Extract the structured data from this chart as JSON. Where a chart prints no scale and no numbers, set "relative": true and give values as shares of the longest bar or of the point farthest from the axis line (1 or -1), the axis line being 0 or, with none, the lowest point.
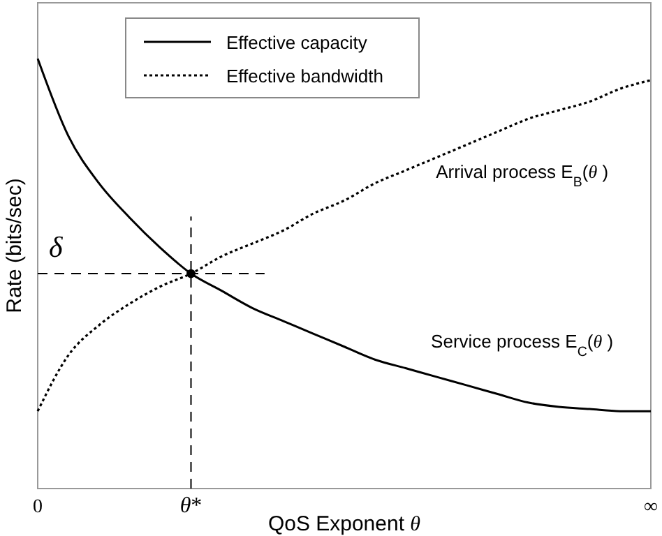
{
  "chart_data": {
    "type": "line",
    "relative": true,
    "xlabel": "QoS Exponent θ",
    "ylabel": "Rate (bits/sec)",
    "categories": [
      "0",
      null,
      null,
      null,
      null,
      "θ*",
      null,
      null,
      null,
      null,
      null,
      null,
      null,
      null,
      null,
      null,
      null,
      null,
      null,
      null,
      "∞"
    ],
    "legend": "top left",
    "series": [
      {
        "name": "Effective capacity",
        "color": "#000000",
        "line_style": "solid",
        "marker": "none",
        "values": [
          1,
          0.82,
          0.71,
          0.63,
          0.56,
          0.5,
          0.46,
          0.42,
          0.39,
          0.36,
          0.33,
          0.3,
          0.28,
          0.26,
          0.24,
          0.22,
          0.2,
          0.19,
          0.185,
          0.18,
          0.18
        ]
      },
      {
        "name": "Effective bandwidth",
        "color": "#000000",
        "line_style": "dotted",
        "marker": "none",
        "values": [
          0.18,
          0.31,
          0.38,
          0.43,
          0.47,
          0.5,
          0.54,
          0.57,
          0.6,
          0.64,
          0.67,
          0.71,
          0.74,
          0.77,
          0.8,
          0.83,
          0.86,
          0.88,
          0.9,
          0.93,
          0.95
        ]
      },
      {
        "type": "scatter",
        "color": "#000000",
        "marker": "circle",
        "values": [
          null,
          null,
          null,
          null,
          null,
          0.5,
          null,
          null,
          null,
          null,
          null,
          null,
          null,
          null,
          null,
          null,
          null,
          null,
          null,
          null,
          null
        ]
      }
    ],
    "ref_lines": [
      {
        "axis": "x",
        "value": "θ*",
        "line_style": "dashed",
        "color": "#000000"
      },
      {
        "axis": "y",
        "value": 0.5,
        "label": "δ",
        "line_style": "dashed",
        "color": "#000000"
      }
    ],
    "annotations": [
      "Arrival process E$_{B}$(θ )",
      "Service process E$_{C}$(θ )"
    ]
  }
}
